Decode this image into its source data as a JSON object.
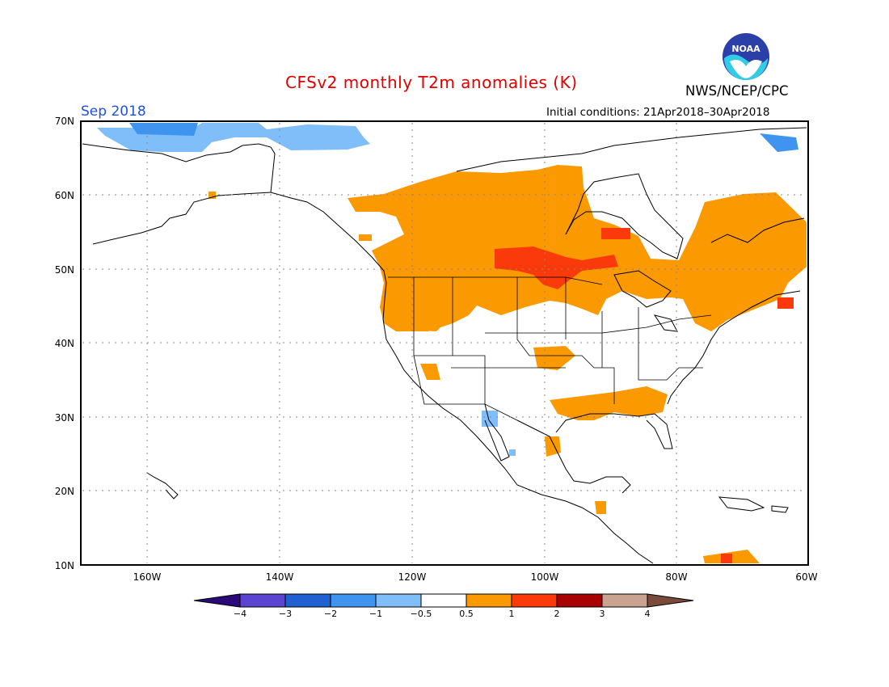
{
  "header": {
    "title": "CFSv2 monthly T2m anomalies (K)",
    "month": "Sep 2018",
    "initial_conditions": "Initial conditions: 21Apr2018–30Apr2018",
    "organization": "NWS/NCEP/CPC",
    "logo_text": "NOAA"
  },
  "map": {
    "region": "North America",
    "lon_range": [
      -171,
      -60
    ],
    "lat_range": [
      10,
      70
    ],
    "lat_ticks": [
      "10N",
      "20N",
      "30N",
      "40N",
      "50N",
      "60N",
      "70N"
    ],
    "lon_ticks": [
      "160W",
      "140W",
      "120W",
      "100W",
      "80W",
      "60W"
    ],
    "grid": "dotted"
  },
  "colorbar": {
    "labels": [
      "−4",
      "−3",
      "−2",
      "−1",
      "−0.5",
      "0.5",
      "1",
      "2",
      "3",
      "4"
    ],
    "colors": {
      "below_-4": "#2a0a78",
      "-4_to_-3": "#5a44d0",
      "-3_to_-2": "#2060d0",
      "-2_to_-1": "#3f94f0",
      "-1_to_-0.5": "#7fbef8",
      "-0.5_to_0.5": "#ffffff",
      "0.5_to_1": "#fb9900",
      "1_to_2": "#fa3a0a",
      "2_to_3": "#a80000",
      "3_to_4": "#c9a290",
      "above_4": "#7a4a3a"
    }
  },
  "anomaly_regions": [
    {
      "area": "Western and central Canada",
      "class": "0.5_to_1"
    },
    {
      "area": "Southern Manitoba / Saskatchewan",
      "class": "1_to_2"
    },
    {
      "area": "Pacific Northwest US",
      "class": "0.5_to_1"
    },
    {
      "area": "Northern Plains",
      "class": "0.5_to_1"
    },
    {
      "area": "Eastern Canada and Quebec",
      "class": "0.5_to_1"
    },
    {
      "area": "New England",
      "class": "0.5_to_1"
    },
    {
      "area": "Gulf Coast states",
      "class": "0.5_to_1"
    },
    {
      "area": "Beaufort Sea / Arctic coast",
      "class": "-1_to-0.5"
    },
    {
      "area": "Northern Alaska coast",
      "class": "-2_to_-1"
    },
    {
      "area": "Northwest Mexico",
      "class": "-1_to_-0.5"
    }
  ]
}
